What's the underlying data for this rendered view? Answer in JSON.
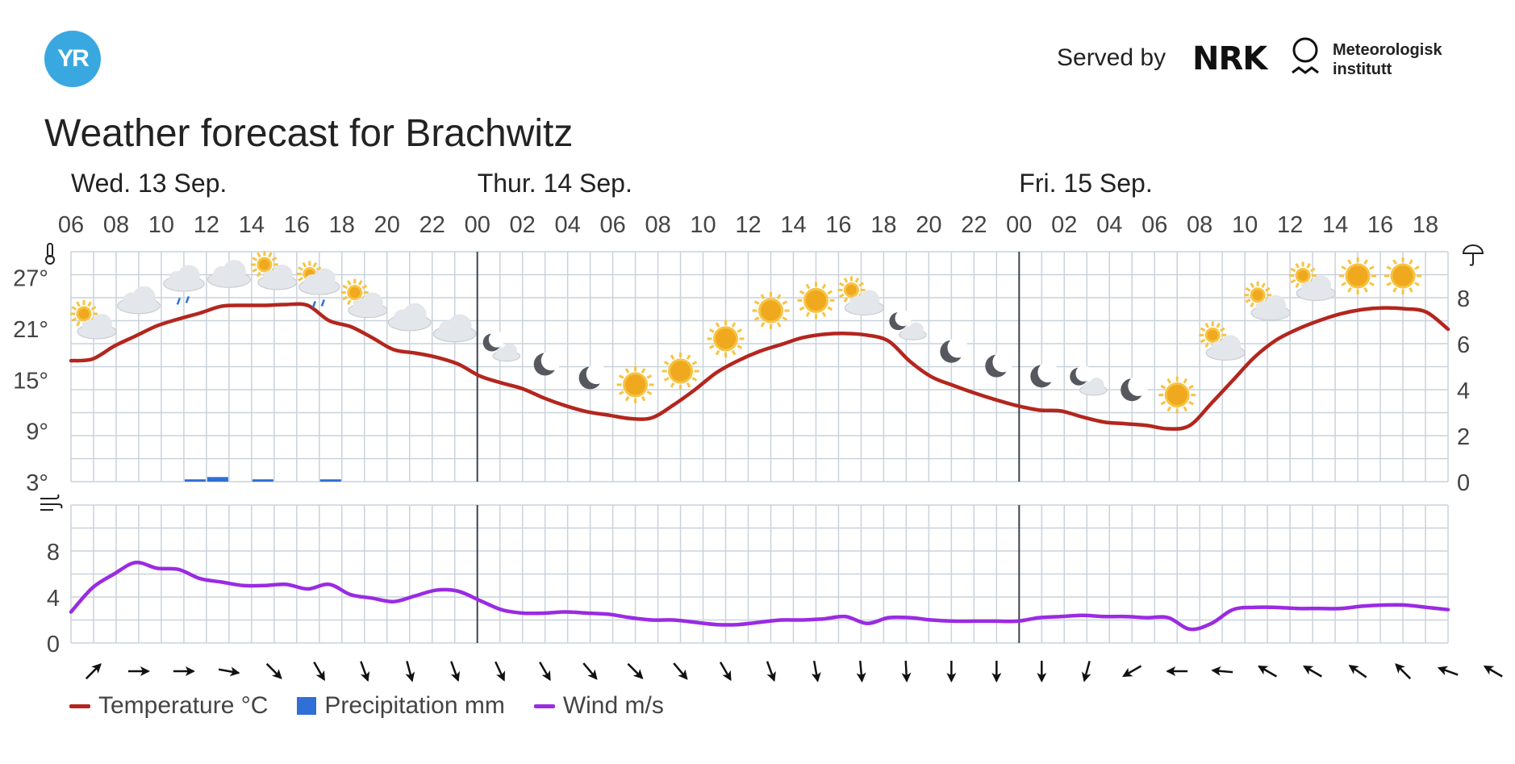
{
  "header": {
    "logo_text": "YR",
    "served_by": "Served by",
    "nrk_text": "NRK",
    "met_line1": "Meteorologisk",
    "met_line2": "institutt"
  },
  "title": "Weather forecast for Brachwitz",
  "colors": {
    "temperature": "#b3261e",
    "precipitation": "#2f6fd6",
    "wind": "#9a2be2",
    "grid": "#c9d2dc",
    "logo": "#3aa8e0"
  },
  "legend": [
    {
      "label": "Temperature °C",
      "kind": "line",
      "color": "#b3261e"
    },
    {
      "label": "Precipitation mm",
      "kind": "box",
      "color": "#2f6fd6"
    },
    {
      "label": "Wind m/s",
      "kind": "line",
      "color": "#9a2be2"
    }
  ],
  "chart_data": {
    "type": "line",
    "days": [
      {
        "label": "Wed. 13 Sep.",
        "start_hour": 6
      },
      {
        "label": "Thur. 14 Sep.",
        "start_hour": 0
      },
      {
        "label": "Fri. 15 Sep.",
        "start_hour": 0
      }
    ],
    "time_labels": [
      "06",
      "08",
      "10",
      "12",
      "14",
      "16",
      "18",
      "20",
      "22",
      "00",
      "02",
      "04",
      "06",
      "08",
      "10",
      "12",
      "14",
      "16",
      "18",
      "20",
      "22",
      "00",
      "02",
      "04",
      "06",
      "08",
      "10",
      "12",
      "14",
      "16",
      "18"
    ],
    "hours_from_start": [
      0,
      1,
      2,
      3,
      4,
      5,
      6,
      7,
      8,
      9,
      10,
      11,
      12,
      13,
      14,
      15,
      16,
      17,
      18,
      19,
      20,
      21,
      22,
      23,
      24,
      25,
      26,
      27,
      28,
      29,
      30,
      31,
      32,
      33,
      34,
      35,
      36,
      37,
      38,
      39,
      40,
      41,
      42,
      43,
      44,
      45,
      46,
      47,
      48,
      49,
      50,
      51,
      52,
      53,
      54,
      55,
      56,
      57,
      58,
      59,
      60,
      61
    ],
    "temperature": {
      "name": "Temperature °C",
      "ylim": [
        3,
        30
      ],
      "yticks": [
        "3°",
        "9°",
        "15°",
        "21°",
        "27°"
      ],
      "values": [
        17.2,
        17.4,
        18.9,
        20.1,
        21.3,
        22.1,
        22.8,
        23.6,
        23.7,
        23.7,
        23.8,
        23.7,
        21.9,
        21.2,
        19.9,
        18.5,
        18.1,
        17.6,
        16.8,
        15.4,
        14.6,
        13.9,
        12.8,
        11.9,
        11.2,
        10.8,
        10.4,
        10.5,
        12.0,
        13.8,
        15.8,
        17.2,
        18.3,
        19.1,
        19.9,
        20.3,
        20.4,
        20.2,
        19.5,
        17.1,
        15.3,
        14.3,
        13.4,
        12.6,
        11.9,
        11.4,
        11.3,
        10.6,
        10.0,
        9.8,
        9.6,
        9.2,
        9.6,
        12.2,
        14.9,
        17.6,
        19.6,
        20.9,
        21.9,
        22.7,
        23.2,
        23.4
      ]
    },
    "temperature_tail": [
      23.3,
      22.9,
      20.9
    ],
    "precipitation": {
      "name": "Precipitation mm",
      "ylim": [
        0,
        10
      ],
      "yticks": [
        "0",
        "2",
        "4",
        "6",
        "8"
      ],
      "bars": [
        {
          "hour": 5,
          "value": 0.1
        },
        {
          "hour": 6,
          "value": 0.2
        },
        {
          "hour": 8,
          "value": 0.1
        },
        {
          "hour": 11,
          "value": 0.1
        }
      ]
    },
    "wind": {
      "name": "Wind m/s",
      "ylim": [
        0,
        12
      ],
      "yticks": [
        "0",
        "4",
        "8"
      ],
      "values": [
        2.7,
        4.8,
        6.0,
        7.0,
        6.5,
        6.4,
        5.6,
        5.3,
        5.0,
        5.0,
        5.1,
        4.7,
        5.1,
        4.2,
        3.9,
        3.6,
        4.1,
        4.6,
        4.5,
        3.7,
        2.9,
        2.6,
        2.6,
        2.7,
        2.6,
        2.5,
        2.2,
        2.0,
        2.0,
        1.8,
        1.6,
        1.6,
        1.8,
        2.0,
        2.0,
        2.1,
        2.3,
        1.7,
        2.2,
        2.2,
        2.0,
        1.9,
        1.9,
        1.9,
        1.9,
        2.2,
        2.3,
        2.4,
        2.3,
        2.3,
        2.2,
        2.2,
        1.2,
        1.7,
        2.9,
        3.1,
        3.1,
        3.0,
        3.0,
        3.0,
        3.2,
        3.3,
        3.3,
        3.1,
        2.9
      ]
    },
    "wind_directions_deg": [
      225,
      270,
      270,
      280,
      315,
      330,
      340,
      345,
      340,
      335,
      330,
      320,
      315,
      320,
      330,
      340,
      350,
      355,
      357,
      0,
      0,
      0,
      15,
      60,
      90,
      95,
      120,
      120,
      125,
      135,
      110,
      120
    ],
    "symbols": [
      "partly-cloudy-day",
      "cloudy",
      "light-rain",
      "cloudy",
      "partly-cloudy-day",
      "light-rain-sun",
      "partly-cloudy-day",
      "cloudy",
      "cloudy",
      "partly-cloudy-night",
      "clear-night",
      "clear-night",
      "clear-day",
      "clear-day",
      "clear-day",
      "clear-day",
      "clear-day",
      "partly-cloudy-day",
      "partly-cloudy-night",
      "clear-night",
      "clear-night",
      "clear-night",
      "partly-cloudy-night",
      "clear-night",
      "clear-day",
      "partly-cloudy-day",
      "partly-cloudy-day",
      "partly-cloudy-day",
      "clear-day",
      "clear-day"
    ],
    "day_boundaries_hours": [
      18,
      42
    ],
    "grid": true,
    "legend_position": "bottom-left"
  }
}
